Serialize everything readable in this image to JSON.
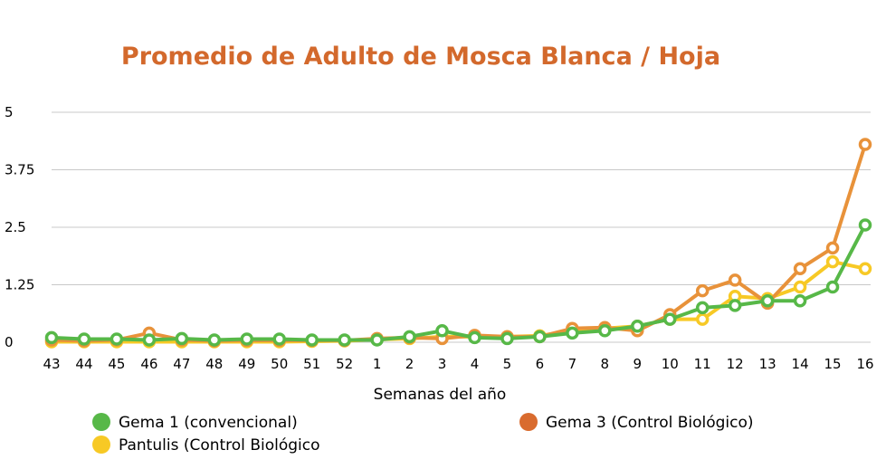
{
  "chart_data": {
    "type": "line",
    "title": "Promedio de Adulto de Mosca Blanca / Hoja",
    "xlabel": "Semanas del año",
    "ylabel": "",
    "categories": [
      "43",
      "44",
      "45",
      "46",
      "47",
      "48",
      "49",
      "50",
      "51",
      "52",
      "1",
      "2",
      "3",
      "4",
      "5",
      "6",
      "7",
      "8",
      "9",
      "10",
      "11",
      "12",
      "13",
      "14",
      "15",
      "16"
    ],
    "y_ticks": [
      0,
      1.25,
      2.5,
      3.75,
      5
    ],
    "y_tick_labels": [
      "0",
      "1.25",
      "2.5",
      "3.75",
      "5"
    ],
    "ylim": [
      0,
      5
    ],
    "grid": "horizontal",
    "legend_position": "bottom",
    "series": [
      {
        "name": "Pantulis (Control Biológico",
        "color": "#F7C925",
        "values": [
          0.01,
          0.01,
          0.01,
          0.01,
          0.01,
          0.01,
          0.01,
          0.01,
          0.02,
          0.03,
          0.06,
          0.08,
          0.12,
          0.12,
          0.12,
          0.14,
          0.25,
          0.3,
          0.35,
          0.5,
          0.5,
          1.0,
          0.95,
          1.2,
          1.75,
          1.6
        ]
      },
      {
        "name": "Gema 3 (Control Biológico)",
        "color": "#E8923A",
        "values": [
          0.05,
          0.03,
          0.05,
          0.2,
          0.05,
          0.03,
          0.04,
          0.04,
          0.04,
          0.04,
          0.08,
          0.1,
          0.08,
          0.15,
          0.12,
          0.12,
          0.3,
          0.32,
          0.25,
          0.6,
          1.12,
          1.35,
          0.85,
          1.6,
          2.05,
          4.3
        ]
      },
      {
        "name": "Gema 1 (convencional)",
        "color": "#57B848",
        "values": [
          0.1,
          0.07,
          0.07,
          0.05,
          0.08,
          0.05,
          0.07,
          0.07,
          0.05,
          0.05,
          0.05,
          0.12,
          0.25,
          0.1,
          0.08,
          0.12,
          0.2,
          0.25,
          0.35,
          0.5,
          0.75,
          0.8,
          0.9,
          0.9,
          1.2,
          2.55
        ]
      }
    ],
    "legend": [
      {
        "label": "Gema 1 (convencional)",
        "color": "#57B848"
      },
      {
        "label": "Gema 3 (Control Biológico)",
        "color": "#D96B2E"
      },
      {
        "label": "Pantulis (Control Biológico",
        "color": "#F7C925"
      }
    ],
    "title_color": "#D3692C",
    "grid_color": "#C8C8C8"
  }
}
